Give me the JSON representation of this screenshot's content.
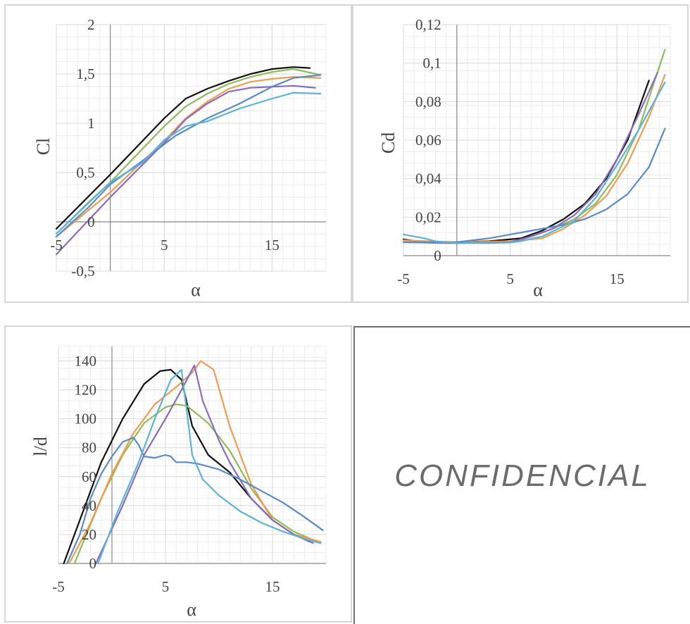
{
  "colors": {
    "black": "#111111",
    "green": "#8fbc5a",
    "orange": "#f39c50",
    "purple": "#8a6bbf",
    "blue": "#5a8ac8",
    "lightblue": "#5ab4d8"
  },
  "confidential_text": "CONFIDENCIAL",
  "chart_data": [
    {
      "id": "cl",
      "type": "line",
      "xlabel": "α",
      "ylabel": "Cl",
      "xlim": [
        -5,
        20
      ],
      "ylim": [
        -0.5,
        2
      ],
      "xticks": [
        {
          "v": -5,
          "t": "-5"
        },
        {
          "v": 5,
          "t": "5"
        },
        {
          "v": 15,
          "t": "15"
        }
      ],
      "yticks": [
        {
          "v": -0.5,
          "t": "-0,5"
        },
        {
          "v": 0,
          "t": "0"
        },
        {
          "v": 0.5,
          "t": "0,5"
        },
        {
          "v": 1,
          "t": "1"
        },
        {
          "v": 1.5,
          "t": "1,5"
        },
        {
          "v": 2,
          "t": "2"
        }
      ],
      "grid": true,
      "series": [
        {
          "color": "black",
          "x": [
            -5,
            0,
            5,
            7,
            9,
            11,
            13,
            15,
            17,
            18.5
          ],
          "y": [
            -0.07,
            0.48,
            1.05,
            1.25,
            1.35,
            1.43,
            1.5,
            1.55,
            1.57,
            1.56
          ]
        },
        {
          "color": "green",
          "x": [
            -5,
            0,
            5,
            7,
            9,
            11,
            13,
            15,
            17,
            19.5
          ],
          "y": [
            -0.12,
            0.4,
            0.97,
            1.17,
            1.3,
            1.4,
            1.47,
            1.52,
            1.55,
            1.49
          ]
        },
        {
          "color": "orange",
          "x": [
            -5,
            0,
            5,
            7,
            9,
            11,
            13,
            15,
            17,
            19.5
          ],
          "y": [
            -0.15,
            0.3,
            0.82,
            1.05,
            1.22,
            1.35,
            1.42,
            1.45,
            1.47,
            1.46
          ]
        },
        {
          "color": "purple",
          "x": [
            -5,
            0,
            5,
            7,
            9,
            11,
            13,
            15,
            17,
            19
          ],
          "y": [
            -0.33,
            0.25,
            0.8,
            1.04,
            1.2,
            1.32,
            1.36,
            1.37,
            1.38,
            1.36
          ]
        },
        {
          "color": "blue",
          "x": [
            -5,
            -2,
            0,
            3,
            6,
            9,
            12,
            15,
            17,
            19.5
          ],
          "y": [
            -0.15,
            0.15,
            0.38,
            0.62,
            0.87,
            1.05,
            1.2,
            1.37,
            1.46,
            1.49
          ]
        },
        {
          "color": "lightblue",
          "x": [
            -5,
            -2,
            0,
            3,
            5,
            7,
            9,
            12,
            15,
            17,
            19.5
          ],
          "y": [
            -0.12,
            0.2,
            0.4,
            0.6,
            0.83,
            0.97,
            1.02,
            1.15,
            1.25,
            1.31,
            1.3
          ]
        }
      ]
    },
    {
      "id": "cd",
      "type": "line",
      "xlabel": "α",
      "ylabel": "Cd",
      "xlim": [
        -5,
        20
      ],
      "ylim": [
        0,
        0.12
      ],
      "xticks": [
        {
          "v": -5,
          "t": "-5"
        },
        {
          "v": 5,
          "t": "5"
        },
        {
          "v": 15,
          "t": "15"
        }
      ],
      "yticks": [
        {
          "v": 0,
          "t": "0"
        },
        {
          "v": 0.02,
          "t": "0,02"
        },
        {
          "v": 0.04,
          "t": "0,04"
        },
        {
          "v": 0.06,
          "t": "0,06"
        },
        {
          "v": 0.08,
          "t": "0,08"
        },
        {
          "v": 0.1,
          "t": "0,1"
        },
        {
          "v": 0.12,
          "t": "0,12"
        }
      ],
      "grid": true,
      "series": [
        {
          "color": "black",
          "x": [
            -5,
            -3,
            0,
            3,
            6,
            8,
            10,
            12,
            14,
            16,
            18
          ],
          "y": [
            0.0085,
            0.007,
            0.007,
            0.0075,
            0.009,
            0.013,
            0.019,
            0.027,
            0.04,
            0.06,
            0.091
          ]
        },
        {
          "color": "green",
          "x": [
            -5,
            0,
            5,
            7,
            9,
            11,
            13,
            15,
            17,
            19.5
          ],
          "y": [
            0.007,
            0.0065,
            0.007,
            0.01,
            0.014,
            0.019,
            0.027,
            0.042,
            0.065,
            0.107
          ]
        },
        {
          "color": "orange",
          "x": [
            -5,
            0,
            5,
            8,
            10,
            12,
            14,
            16,
            18,
            19.5
          ],
          "y": [
            0.008,
            0.007,
            0.0075,
            0.009,
            0.014,
            0.021,
            0.031,
            0.048,
            0.072,
            0.094
          ]
        },
        {
          "color": "purple",
          "x": [
            -5,
            0,
            5,
            7,
            9,
            11,
            13,
            15,
            17,
            18.8
          ],
          "y": [
            0.007,
            0.0065,
            0.007,
            0.01,
            0.014,
            0.021,
            0.032,
            0.05,
            0.073,
            0.095
          ]
        },
        {
          "color": "blue",
          "x": [
            -5,
            0,
            3,
            5,
            7,
            10,
            12,
            14,
            16,
            18,
            19.5
          ],
          "y": [
            0.007,
            0.007,
            0.009,
            0.011,
            0.013,
            0.016,
            0.019,
            0.024,
            0.032,
            0.046,
            0.066
          ]
        },
        {
          "color": "lightblue",
          "x": [
            -5,
            -3,
            -2,
            0,
            3,
            5,
            6,
            8,
            11,
            13,
            15,
            17,
            19.5
          ],
          "y": [
            0.011,
            0.009,
            0.0075,
            0.0065,
            0.0065,
            0.0068,
            0.0075,
            0.01,
            0.018,
            0.03,
            0.047,
            0.065,
            0.09
          ]
        }
      ]
    },
    {
      "id": "ld",
      "type": "line",
      "xlabel": "α",
      "ylabel": "l/d",
      "xlim": [
        -5,
        20
      ],
      "ylim": [
        0,
        150
      ],
      "xticks": [
        {
          "v": -5,
          "t": "-5"
        },
        {
          "v": 5,
          "t": "5"
        },
        {
          "v": 15,
          "t": "15"
        }
      ],
      "yticks": [
        {
          "v": 0,
          "t": "0"
        },
        {
          "v": 20,
          "t": "20"
        },
        {
          "v": 40,
          "t": "40"
        },
        {
          "v": 60,
          "t": "60"
        },
        {
          "v": 80,
          "t": "80"
        },
        {
          "v": 100,
          "t": "100"
        },
        {
          "v": 120,
          "t": "120"
        },
        {
          "v": 140,
          "t": "140"
        }
      ],
      "grid": true,
      "series": [
        {
          "color": "black",
          "x": [
            -4.5,
            -3,
            -1,
            1,
            3,
            4.5,
            5.5,
            6.5,
            7.5,
            9,
            11,
            13,
            15,
            17,
            18.5
          ],
          "y": [
            0,
            30,
            70,
            100,
            124,
            133,
            134,
            127,
            95,
            75,
            63,
            45,
            30,
            20,
            15
          ]
        },
        {
          "color": "green",
          "x": [
            -3.5,
            -1,
            1,
            3,
            5,
            6,
            7,
            9,
            11,
            13,
            15,
            17,
            19.5
          ],
          "y": [
            0,
            45,
            75,
            97,
            108,
            110,
            109,
            97,
            78,
            52,
            32,
            22,
            14
          ]
        },
        {
          "color": "orange",
          "x": [
            -4,
            -2,
            0,
            2,
            4,
            6,
            7.5,
            8.3,
            9.5,
            11,
            12,
            13,
            15,
            17,
            19.5
          ],
          "y": [
            0,
            28,
            62,
            90,
            110,
            122,
            132,
            140,
            134,
            95,
            75,
            55,
            30,
            20,
            15
          ]
        },
        {
          "color": "purple",
          "x": [
            -1.5,
            1,
            3,
            5,
            6.5,
            7.7,
            8.5,
            10,
            11,
            13,
            15,
            17,
            18.8
          ],
          "y": [
            0,
            40,
            75,
            100,
            120,
            137,
            112,
            85,
            70,
            45,
            30,
            20,
            14
          ]
        },
        {
          "color": "blue",
          "x": [
            -4.2,
            -3,
            -2,
            -1,
            0,
            1,
            2,
            2.5,
            3,
            4,
            5,
            5.5,
            6,
            7,
            8,
            10,
            12,
            14,
            16,
            18,
            19.7
          ],
          "y": [
            0,
            20,
            45,
            62,
            74,
            84,
            87,
            82,
            74,
            73,
            75,
            74,
            70,
            70,
            69,
            65,
            58,
            50,
            42,
            32,
            23
          ]
        },
        {
          "color": "lightblue",
          "x": [
            -1.3,
            0.5,
            2.5,
            4,
            5.5,
            6.5,
            7,
            7.5,
            8.5,
            10,
            12,
            14,
            16,
            18,
            19.5
          ],
          "y": [
            0,
            35,
            70,
            100,
            127,
            134,
            105,
            75,
            58,
            47,
            36,
            28,
            22,
            17,
            14
          ]
        }
      ]
    }
  ]
}
